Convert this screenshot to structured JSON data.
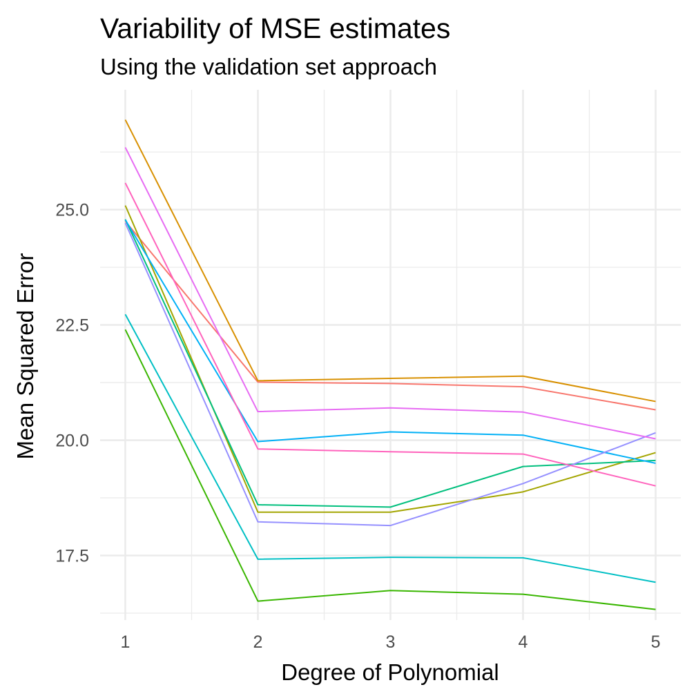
{
  "chart_data": {
    "type": "line",
    "title": "Variability of MSE estimates",
    "subtitle": "Using the validation set approach",
    "xlabel": "Degree of Polynomial",
    "ylabel": "Mean Squared Error",
    "x": [
      1,
      2,
      3,
      4,
      5
    ],
    "x_ticks": [
      1,
      2,
      3,
      4,
      5
    ],
    "x_tick_labels": [
      "1",
      "2",
      "3",
      "4",
      "5"
    ],
    "y_ticks": [
      17.5,
      20.0,
      22.5,
      25.0
    ],
    "y_tick_labels": [
      "17.5",
      "20.0",
      "22.5",
      "25.0"
    ],
    "xlim": [
      0.81,
      5.19
    ],
    "ylim": [
      16.1,
      27.6
    ],
    "grid": true,
    "legend": "none",
    "series": [
      {
        "color": "#F8766D",
        "values": [
          24.75,
          21.26,
          21.23,
          21.16,
          20.66
        ]
      },
      {
        "color": "#D89000",
        "values": [
          26.95,
          21.29,
          21.34,
          21.39,
          20.84
        ]
      },
      {
        "color": "#A3A500",
        "values": [
          25.09,
          18.44,
          18.44,
          18.88,
          19.73
        ]
      },
      {
        "color": "#39B600",
        "values": [
          22.4,
          16.51,
          16.74,
          16.66,
          16.33
        ]
      },
      {
        "color": "#00BF7D",
        "values": [
          24.79,
          18.6,
          18.55,
          19.43,
          19.56
        ]
      },
      {
        "color": "#00BFC4",
        "values": [
          22.73,
          17.42,
          17.46,
          17.45,
          16.92
        ]
      },
      {
        "color": "#00B0F6",
        "values": [
          24.78,
          19.97,
          20.18,
          20.11,
          19.5
        ]
      },
      {
        "color": "#9590FF",
        "values": [
          24.71,
          18.23,
          18.15,
          19.06,
          20.16
        ]
      },
      {
        "color": "#E76BF3",
        "values": [
          26.35,
          20.62,
          20.7,
          20.61,
          20.03
        ]
      },
      {
        "color": "#FF62BC",
        "values": [
          25.58,
          19.81,
          19.75,
          19.7,
          19.01
        ]
      }
    ]
  }
}
